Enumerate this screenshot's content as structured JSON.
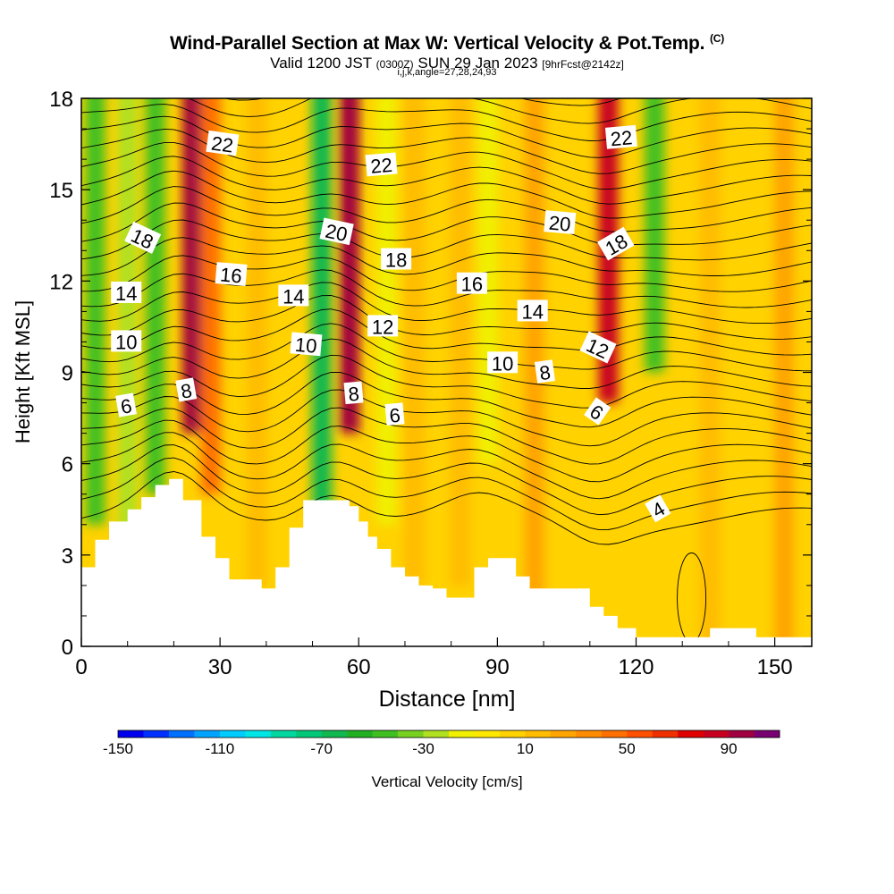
{
  "title": "Wind-Parallel Section at Max W: Vertical Velocity & Pot.Temp.",
  "title_tag": "(C)",
  "subtitle_a": "Valid 1200 JST",
  "subtitle_b": "(0300Z)",
  "subtitle_c": "SUN 29 Jan 2023",
  "subtitle_d": "[9hrFcst@2142z]",
  "subtitle_2": "i,j,k,angle=27,28,24,93",
  "chart_data": {
    "type": "heatmap",
    "xlabel": "Distance [nm]",
    "ylabel": "Height [Kft MSL]",
    "xlim": [
      0,
      158
    ],
    "ylim": [
      0,
      18
    ],
    "xticks": [
      0,
      30,
      60,
      90,
      120,
      150
    ],
    "yticks": [
      0,
      3,
      6,
      9,
      12,
      15,
      18
    ],
    "colorbar": {
      "label": "Vertical Velocity [cm/s]",
      "min": -150,
      "max": 110,
      "step": 10,
      "tick_labels": [
        -150,
        -110,
        -70,
        -30,
        10,
        50,
        90
      ],
      "colors": [
        "#0000ee",
        "#0030ff",
        "#0070ff",
        "#00a4ff",
        "#00ccff",
        "#00e6e6",
        "#00d8a0",
        "#00c878",
        "#10b850",
        "#20b020",
        "#40c020",
        "#78d020",
        "#b0e020",
        "#f0f000",
        "#ffe800",
        "#ffd200",
        "#ffbc00",
        "#ffa400",
        "#ff8c00",
        "#ff7000",
        "#ff5000",
        "#f03000",
        "#e00000",
        "#c80020",
        "#a00040",
        "#780070"
      ]
    },
    "w_columns": [
      {
        "x": 3,
        "w": -50,
        "bottom": 4
      },
      {
        "x": 10,
        "w": -30,
        "bottom": 3
      },
      {
        "x": 16,
        "w": -45,
        "bottom": 5
      },
      {
        "x": 24,
        "w": 95,
        "bottom": 7
      },
      {
        "x": 28,
        "w": 45,
        "bottom": 5
      },
      {
        "x": 38,
        "w": 10,
        "bottom": 2
      },
      {
        "x": 52,
        "w": -65,
        "bottom": 4.5
      },
      {
        "x": 58,
        "w": 95,
        "bottom": 7
      },
      {
        "x": 66,
        "w": -15,
        "bottom": 4
      },
      {
        "x": 72,
        "w": 15,
        "bottom": 2
      },
      {
        "x": 82,
        "w": 15,
        "bottom": 2
      },
      {
        "x": 88,
        "w": -15,
        "bottom": 6
      },
      {
        "x": 98,
        "w": 20,
        "bottom": 0
      },
      {
        "x": 114,
        "w": 80,
        "bottom": 8
      },
      {
        "x": 124,
        "w": -45,
        "bottom": 9
      },
      {
        "x": 136,
        "w": 10,
        "bottom": 0
      },
      {
        "x": 152,
        "w": 25,
        "bottom": 0
      }
    ],
    "terrain": [
      [
        0,
        2.6
      ],
      [
        3,
        3.5
      ],
      [
        6,
        4.1
      ],
      [
        10,
        4.5
      ],
      [
        13,
        4.9
      ],
      [
        16,
        5.3
      ],
      [
        19,
        5.5
      ],
      [
        22,
        4.8
      ],
      [
        26,
        3.6
      ],
      [
        29,
        2.9
      ],
      [
        32,
        2.2
      ],
      [
        36,
        2.2
      ],
      [
        39,
        1.9
      ],
      [
        42,
        2.6
      ],
      [
        45,
        3.9
      ],
      [
        48,
        4.8
      ],
      [
        52,
        4.8
      ],
      [
        56,
        4.8
      ],
      [
        58,
        4.6
      ],
      [
        60,
        4.1
      ],
      [
        62,
        3.6
      ],
      [
        64,
        3.2
      ],
      [
        67,
        2.6
      ],
      [
        70,
        2.3
      ],
      [
        73,
        2.0
      ],
      [
        76,
        1.9
      ],
      [
        79,
        1.6
      ],
      [
        82,
        1.6
      ],
      [
        85,
        2.6
      ],
      [
        88,
        2.9
      ],
      [
        91,
        2.9
      ],
      [
        94,
        2.3
      ],
      [
        97,
        1.9
      ],
      [
        100,
        1.9
      ],
      [
        103,
        1.9
      ],
      [
        107,
        1.9
      ],
      [
        110,
        1.3
      ],
      [
        113,
        1.0
      ],
      [
        116,
        0.6
      ],
      [
        120,
        0.3
      ],
      [
        124,
        0.3
      ],
      [
        128,
        0.3
      ],
      [
        132,
        0.3
      ],
      [
        136,
        0.6
      ],
      [
        140,
        0.6
      ],
      [
        146,
        0.3
      ],
      [
        150,
        0.3
      ],
      [
        154,
        0.3
      ],
      [
        158,
        0.3
      ]
    ],
    "theta_labels": [
      {
        "text": "22",
        "x": 30.5,
        "y": 16.5,
        "angle": 8
      },
      {
        "text": "22",
        "x": 64.9,
        "y": 15.8,
        "angle": -5
      },
      {
        "text": "22",
        "x": 116.8,
        "y": 16.7,
        "angle": -5
      },
      {
        "text": "20",
        "x": 55.2,
        "y": 13.6,
        "angle": 12
      },
      {
        "text": "20",
        "x": 103.5,
        "y": 13.9,
        "angle": 5
      },
      {
        "text": "18",
        "x": 13.2,
        "y": 13.4,
        "angle": 25
      },
      {
        "text": "18",
        "x": 68.1,
        "y": 12.7,
        "angle": 0
      },
      {
        "text": "18",
        "x": 115.7,
        "y": 13.2,
        "angle": -30
      },
      {
        "text": "16",
        "x": 32.4,
        "y": 12.2,
        "angle": 5
      },
      {
        "text": "16",
        "x": 84.5,
        "y": 11.9,
        "angle": 0
      },
      {
        "text": "14",
        "x": 9.7,
        "y": 11.6,
        "angle": 0
      },
      {
        "text": "14",
        "x": 45.9,
        "y": 11.5,
        "angle": 0
      },
      {
        "text": "14",
        "x": 97.6,
        "y": 11.0,
        "angle": 0
      },
      {
        "text": "12",
        "x": 65.2,
        "y": 10.5,
        "angle": 0
      },
      {
        "text": "12",
        "x": 111.7,
        "y": 9.8,
        "angle": 25
      },
      {
        "text": "10",
        "x": 9.7,
        "y": 10.0,
        "angle": 0
      },
      {
        "text": "10",
        "x": 48.6,
        "y": 9.9,
        "angle": 5
      },
      {
        "text": "10",
        "x": 91.1,
        "y": 9.3,
        "angle": 0
      },
      {
        "text": "8",
        "x": 22.7,
        "y": 8.4,
        "angle": -10
      },
      {
        "text": "8",
        "x": 58.9,
        "y": 8.3,
        "angle": -5
      },
      {
        "text": "8",
        "x": 100.3,
        "y": 9.0,
        "angle": -8
      },
      {
        "text": "6",
        "x": 9.7,
        "y": 7.9,
        "angle": -10
      },
      {
        "text": "6",
        "x": 67.8,
        "y": 7.6,
        "angle": -5
      },
      {
        "text": "6",
        "x": 111.5,
        "y": 7.7,
        "angle": 35
      },
      {
        "text": "4",
        "x": 124.8,
        "y": 4.5,
        "angle": -30
      }
    ]
  }
}
